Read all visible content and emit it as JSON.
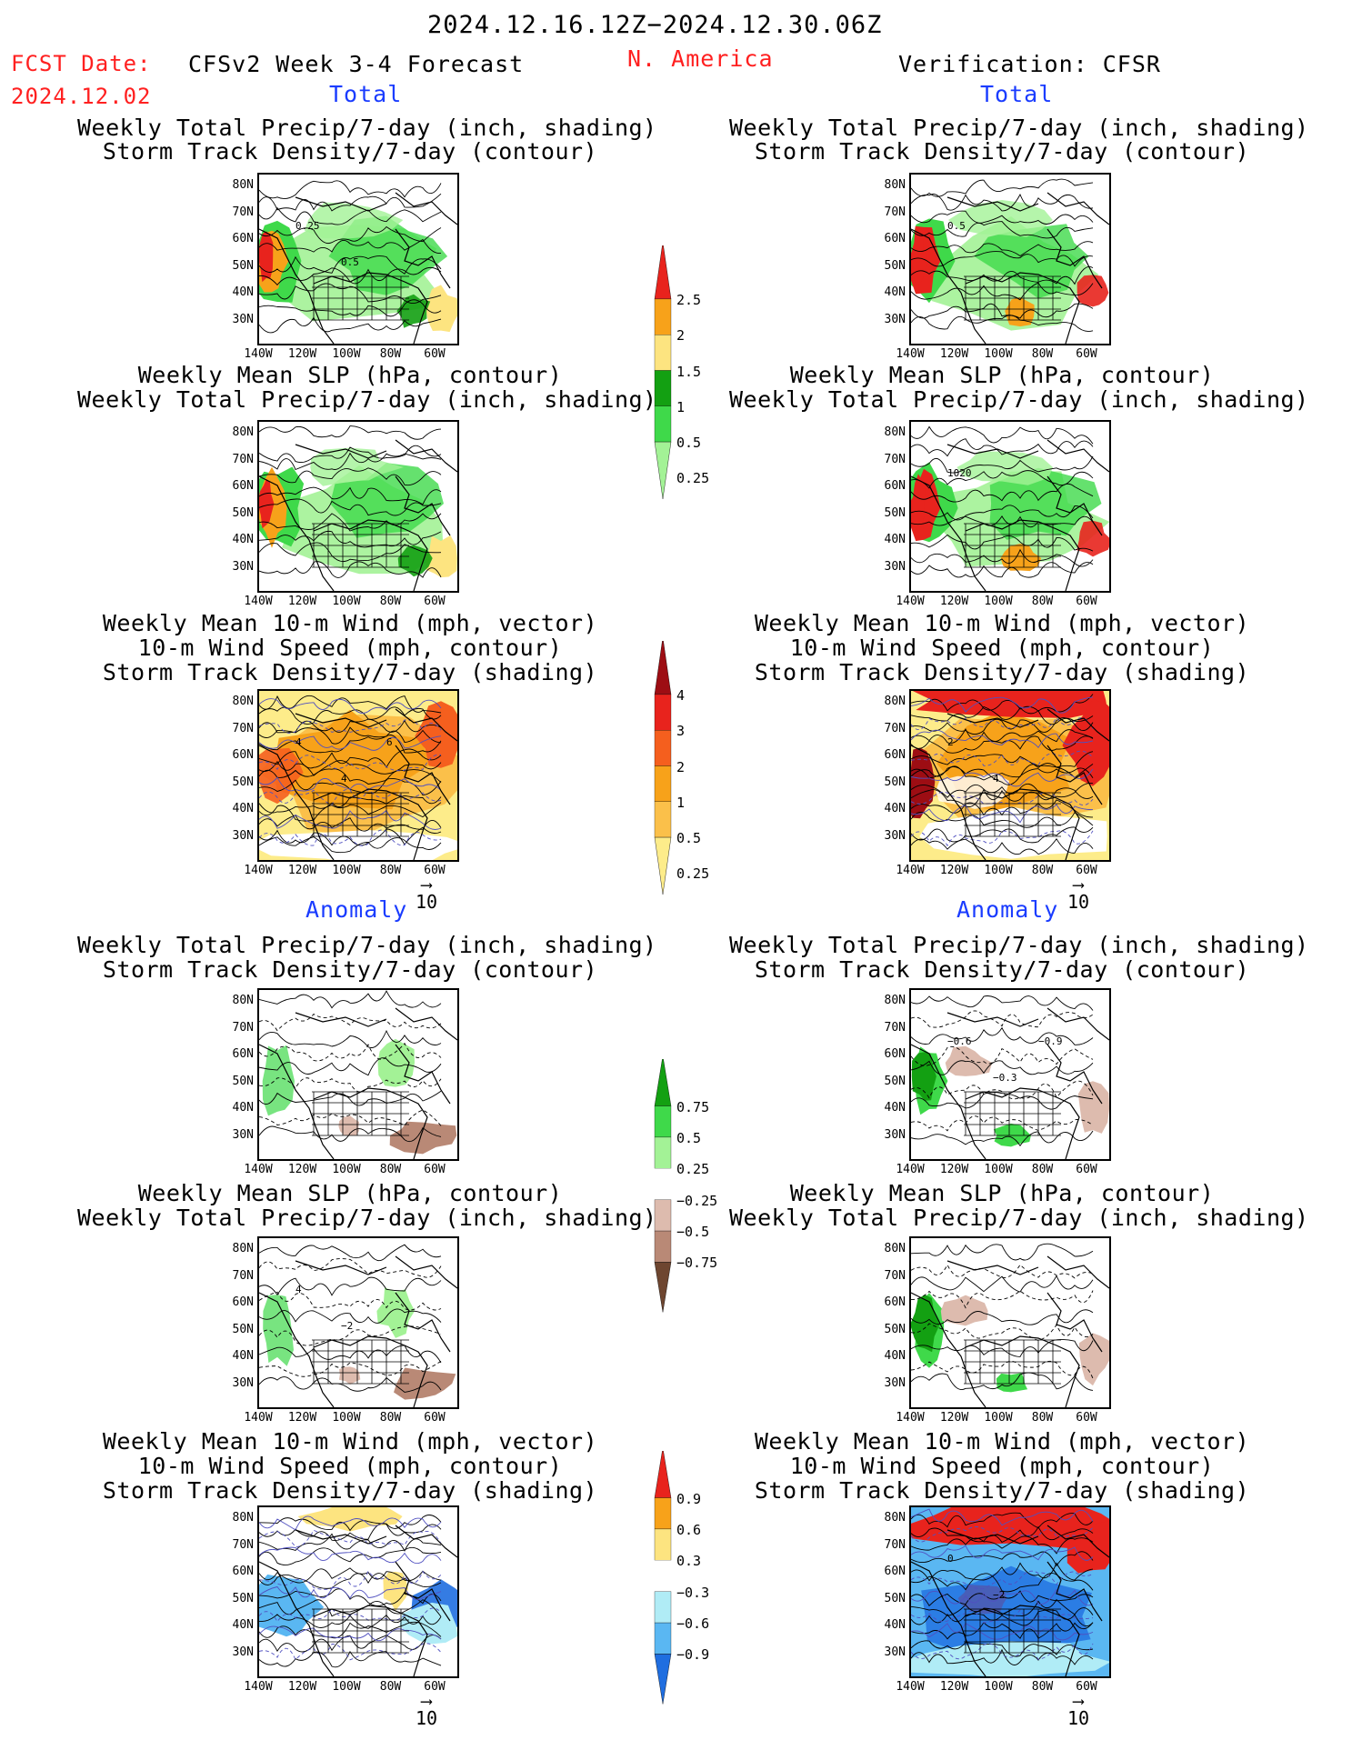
{
  "header": {
    "date_range": "2024.12.16.12Z−2024.12.30.06Z",
    "fcst_label": "FCST Date:",
    "fcst_date": "2024.12.02",
    "model": "CFSv2 Week 3-4 Forecast",
    "region": "N. America",
    "verification": "Verification: CFSR",
    "total_label": "Total",
    "anomaly_label": "Anomaly"
  },
  "axes": {
    "lat": [
      "80N",
      "70N",
      "60N",
      "50N",
      "40N",
      "30N"
    ],
    "lon": [
      "140W",
      "120W",
      "100W",
      "80W",
      "60W"
    ]
  },
  "panel_titles": {
    "precip_storm": [
      "Weekly Total Precip/7-day (inch, shading)",
      "Storm Track Density/7-day (contour)"
    ],
    "slp_precip": [
      "Weekly Mean SLP (hPa, contour)",
      "Weekly Total Precip/7-day (inch, shading)"
    ],
    "wind_storm": [
      "Weekly Mean 10-m Wind (mph, vector)",
      "10-m Wind Speed (mph, contour)",
      "Storm Track Density/7-day (shading)"
    ]
  },
  "vector_ref": "10",
  "colorbars": [
    {
      "labels": [
        "2.5",
        "2",
        "1.5",
        "1",
        "0.5",
        "0.25"
      ],
      "colors": [
        "#e8231d",
        "#f7a21a",
        "#fde480",
        "#13a012",
        "#3fd94a",
        "#a3f296"
      ]
    },
    {
      "labels": [
        "4",
        "3",
        "2",
        "1",
        "0.5",
        "0.25"
      ],
      "colors": [
        "#9d0d13",
        "#e8231d",
        "#f55f1e",
        "#f7a21a",
        "#fbc04a",
        "#fdec8a"
      ]
    },
    {
      "labels": [
        "0.75",
        "0.5",
        "0.25",
        "−0.25",
        "−0.5",
        "−0.75"
      ],
      "colors": [
        "#13a012",
        "#3fd94a",
        "#a3f296",
        "#ffffff",
        "#ddbbae",
        "#b98976",
        "#6e4630"
      ]
    },
    {
      "labels": [
        "0.9",
        "0.6",
        "0.3",
        "−0.3",
        "−0.6",
        "−0.9"
      ],
      "colors": [
        "#e8231d",
        "#f7a21a",
        "#fde480",
        "#ffffff",
        "#b0ecf6",
        "#5ab7f2",
        "#1f6ee0"
      ]
    }
  ],
  "panels": [
    {
      "id": "f-precip-total",
      "style": "precip",
      "labels": [
        "0.25",
        "0.5"
      ]
    },
    {
      "id": "o-precip-total",
      "style": "precip-obs",
      "labels": [
        "0.5"
      ]
    },
    {
      "id": "f-slp-total",
      "style": "precip",
      "labels": []
    },
    {
      "id": "o-slp-total",
      "style": "precip-obs",
      "labels": [
        "1020"
      ]
    },
    {
      "id": "f-wind-total",
      "style": "storm",
      "labels": [
        "4",
        "4",
        "6"
      ]
    },
    {
      "id": "o-wind-total",
      "style": "storm-obs",
      "labels": [
        "2",
        "4"
      ]
    },
    {
      "id": "f-precip-anom",
      "style": "anom",
      "labels": []
    },
    {
      "id": "o-precip-anom",
      "style": "anom-obs",
      "labels": [
        "−0.6",
        "−0.3",
        "−0.9"
      ]
    },
    {
      "id": "f-slp-anom",
      "style": "anom",
      "labels": [
        "4",
        "−2"
      ]
    },
    {
      "id": "o-slp-anom",
      "style": "anom-obs",
      "labels": []
    },
    {
      "id": "f-wind-anom",
      "style": "wind-anom",
      "labels": []
    },
    {
      "id": "o-wind-anom",
      "style": "wind-anom-obs",
      "labels": [
        "0",
        "−2"
      ]
    }
  ]
}
